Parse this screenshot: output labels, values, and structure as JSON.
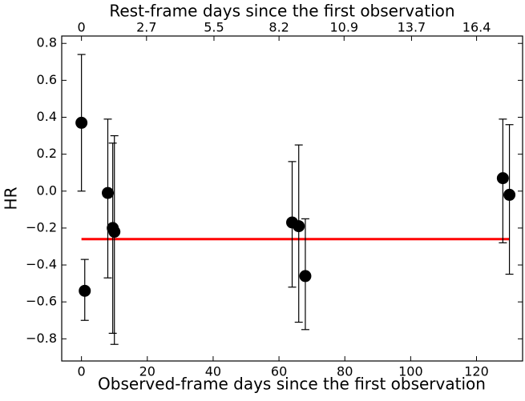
{
  "chart_data": {
    "type": "errorbar",
    "xlabel": "Observed-frame days since the first observation",
    "x2label": "Rest-frame days since the first observation",
    "ylabel": "HR",
    "x": [
      0,
      1,
      8,
      9.5,
      10,
      64,
      66,
      68,
      128,
      130
    ],
    "values": [
      0.37,
      -0.54,
      -0.01,
      -0.2,
      -0.22,
      -0.17,
      -0.19,
      -0.46,
      0.07,
      -0.02
    ],
    "err_low": [
      0.37,
      0.16,
      0.46,
      0.57,
      0.61,
      0.35,
      0.52,
      0.29,
      0.35,
      0.43
    ],
    "err_high": [
      0.37,
      0.17,
      0.4,
      0.46,
      0.52,
      0.33,
      0.44,
      0.31,
      0.32,
      0.38
    ],
    "color": "#000000",
    "hline": {
      "value": -0.26,
      "xrange": [
        0,
        130
      ],
      "color": "#ff0000"
    },
    "xlim": [
      -6,
      134
    ],
    "xticks": [
      0,
      20,
      40,
      60,
      80,
      100,
      120
    ],
    "x2lim": [
      -0.82,
      18.31
    ],
    "x2ticks": [
      0,
      2.7,
      5.5,
      8.2,
      10.9,
      13.7,
      16.4
    ],
    "ylim": [
      -0.92,
      0.84
    ],
    "yticks": [
      {
        "value": -0.8,
        "label": "−0.8"
      },
      {
        "value": -0.6,
        "label": "−0.6"
      },
      {
        "value": -0.4,
        "label": "−0.4"
      },
      {
        "value": -0.2,
        "label": "−0.2"
      },
      {
        "value": 0,
        "label": "0.0"
      },
      0.2,
      0.4,
      0.6,
      0.8
    ]
  }
}
